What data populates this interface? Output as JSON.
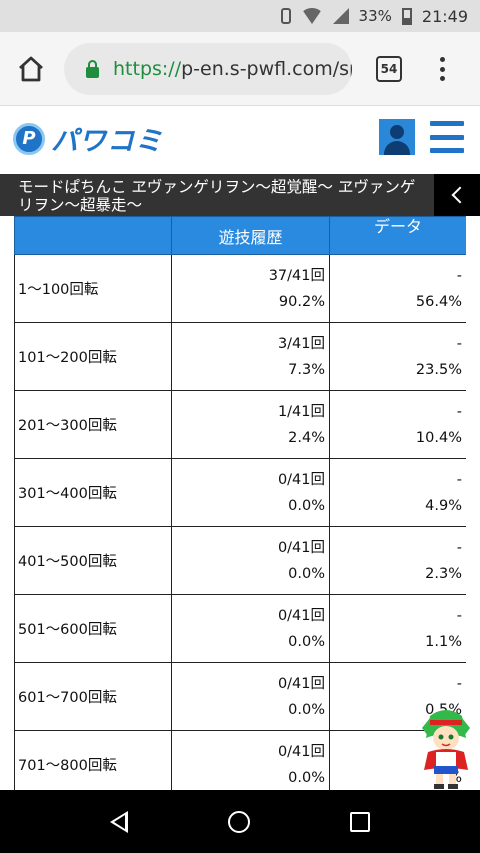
{
  "status_bar": {
    "battery": "33%",
    "time": "21:49"
  },
  "browser": {
    "url_scheme": "https://",
    "url_host": "p-en.s-pwfl.com/spec",
    "tab_count": "54"
  },
  "site": {
    "logo_text": "パワコミ",
    "logo_mark": "P"
  },
  "page_title": "モードぱちんこ ヱヴァンゲリヲン〜超覚醒〜 ヱヴァンゲリヲン〜超暴走〜",
  "table": {
    "headers": {
      "rotation": "",
      "history": "遊技履歴",
      "data": "データ"
    },
    "rows": [
      {
        "range": "1〜100回転",
        "count": "37/41回",
        "pct": "90.2%",
        "data_top": "-",
        "data_pct": "56.4%"
      },
      {
        "range": "101〜200回転",
        "count": "3/41回",
        "pct": "7.3%",
        "data_top": "-",
        "data_pct": "23.5%"
      },
      {
        "range": "201〜300回転",
        "count": "1/41回",
        "pct": "2.4%",
        "data_top": "-",
        "data_pct": "10.4%"
      },
      {
        "range": "301〜400回転",
        "count": "0/41回",
        "pct": "0.0%",
        "data_top": "-",
        "data_pct": "4.9%"
      },
      {
        "range": "401〜500回転",
        "count": "0/41回",
        "pct": "0.0%",
        "data_top": "-",
        "data_pct": "2.3%"
      },
      {
        "range": "501〜600回転",
        "count": "0/41回",
        "pct": "0.0%",
        "data_top": "-",
        "data_pct": "1.1%"
      },
      {
        "range": "601〜700回転",
        "count": "0/41回",
        "pct": "0.0%",
        "data_top": "-",
        "data_pct": "0.5%"
      },
      {
        "range": "701〜800回転",
        "count": "0/41回",
        "pct": "0.0%",
        "data_top": "-",
        "data_pct": "%"
      }
    ]
  },
  "colors": {
    "header_blue": "#2a8ae0",
    "brand_blue": "#1f74c8",
    "title_bar": "#333333",
    "secure_green": "#1e8e3e"
  }
}
